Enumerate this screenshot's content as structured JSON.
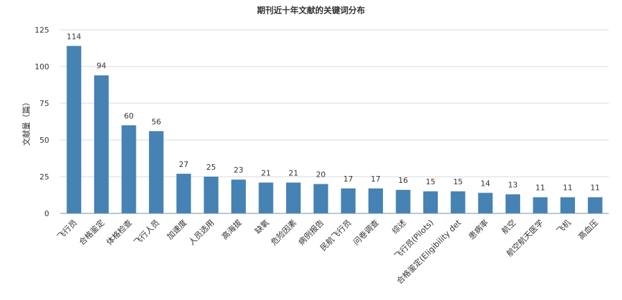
{
  "chart_data": {
    "type": "bar",
    "title": "期刊近十年文献的关键词分布",
    "xlabel": "",
    "ylabel": "文献量（篇）",
    "ylim": [
      0,
      125
    ],
    "yticks": [
      0,
      25,
      50,
      75,
      100,
      125
    ],
    "grid": true,
    "legend": "none",
    "bar_color": "#4682b4",
    "categories": [
      "飞行员",
      "合格鉴定",
      "体格检查",
      "飞行人员",
      "加速度",
      "人员选用",
      "高海拔",
      "缺氧",
      "危险因素",
      "病例报告",
      "民航飞行员",
      "问卷调查",
      "综述",
      "飞行员(Pilots)",
      "合格鉴定(Eligibility det",
      "患病率",
      "航空",
      "航空航天医学",
      "飞机",
      "高血压"
    ],
    "values": [
      114,
      94,
      60,
      56,
      27,
      25,
      23,
      21,
      21,
      20,
      17,
      17,
      16,
      15,
      15,
      14,
      13,
      11,
      11,
      11
    ]
  }
}
